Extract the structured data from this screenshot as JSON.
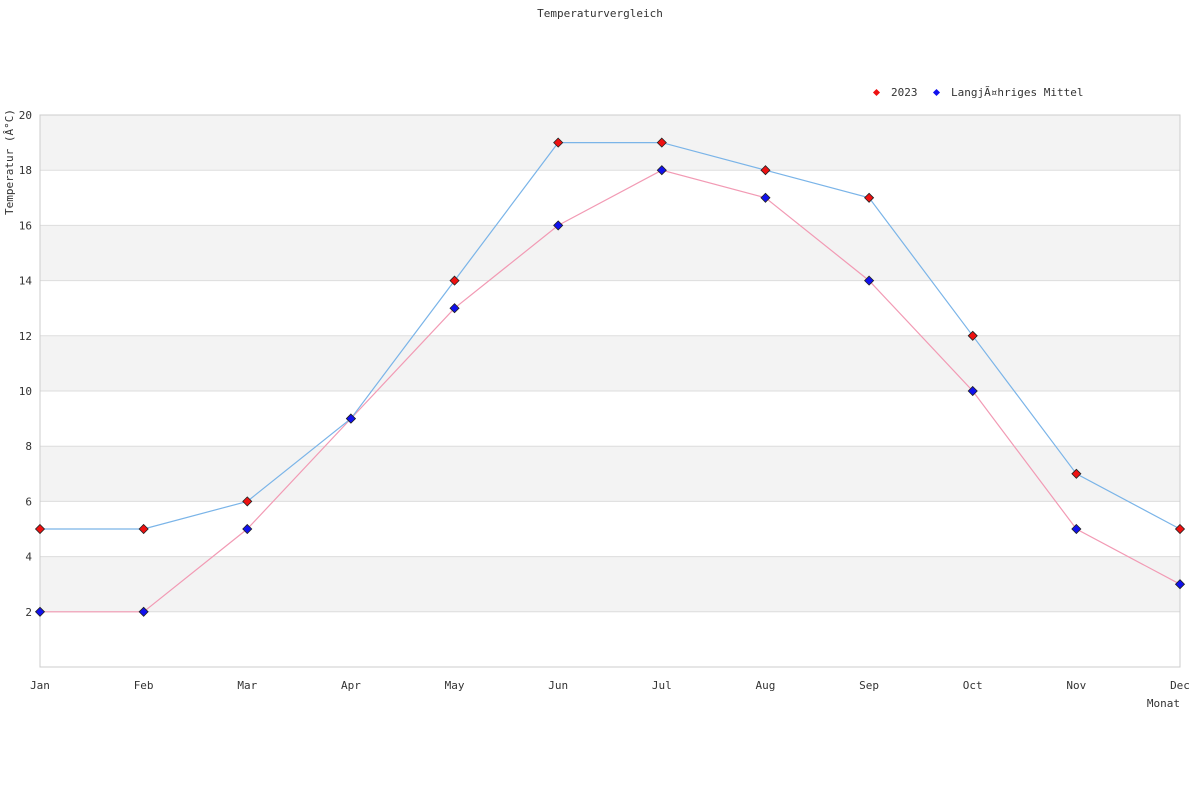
{
  "chart_data": {
    "type": "line",
    "title": "Temperaturvergleich",
    "xlabel": "Monat",
    "ylabel": "Temperatur (Â°C)",
    "categories": [
      "Jan",
      "Feb",
      "Mar",
      "Apr",
      "May",
      "Jun",
      "Jul",
      "Aug",
      "Sep",
      "Oct",
      "Nov",
      "Dec"
    ],
    "ylim": [
      0,
      20
    ],
    "yticks": [
      2,
      4,
      6,
      8,
      10,
      12,
      14,
      16,
      18,
      20
    ],
    "grid": true,
    "legend_position": "top-right",
    "series": [
      {
        "name": "2023",
        "values": [
          5,
          5,
          6,
          9,
          14,
          19,
          19,
          18,
          17,
          12,
          7,
          5
        ],
        "line_color": "#7ab4e8",
        "marker_color": "#ee1111"
      },
      {
        "name": "LangjÃ¤hriges Mittel",
        "values": [
          2,
          2,
          5,
          9,
          13,
          16,
          18,
          17,
          14,
          10,
          5,
          3
        ],
        "line_color": "#f29ab4",
        "marker_color": "#1111ee"
      }
    ]
  }
}
